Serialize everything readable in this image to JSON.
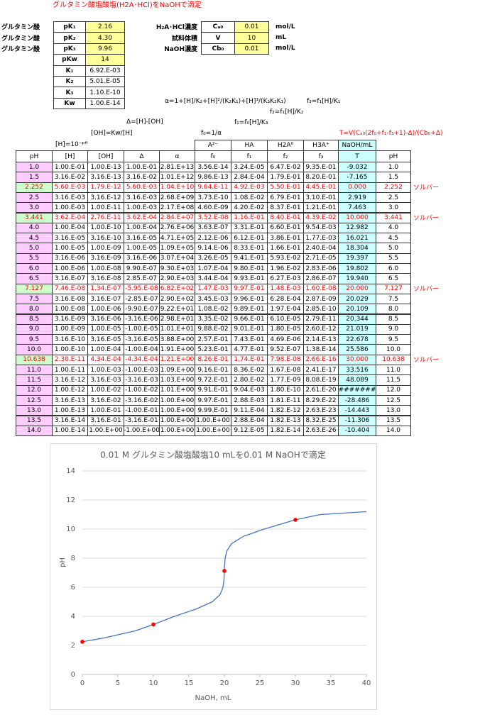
{
  "title": "グルタミン酸塩酸塩(H2A･HCl)をNaOHで滴定",
  "params": [
    {
      "label": "グルタミン酸",
      "symbol": "pK₁",
      "value": "2.16"
    },
    {
      "label": "グルタミン酸",
      "symbol": "pK₂",
      "value": "4.30"
    },
    {
      "label": "グルタミン酸",
      "symbol": "pK₃",
      "value": "9.96"
    },
    {
      "symbol": "pKw",
      "value": "14"
    },
    {
      "symbol": "K₁",
      "value": "6.92.E-03"
    },
    {
      "symbol": "K₂",
      "value": "5.01.E-05"
    },
    {
      "symbol": "K₃",
      "value": "1.10.E-10"
    },
    {
      "symbol": "Kw",
      "value": "1.00.E-14"
    }
  ],
  "conditions": [
    {
      "label": "H₂A･HCl濃度",
      "symbol": "Cₐ₀",
      "value": "0.01",
      "unit": "mol/L"
    },
    {
      "label": "試料体積",
      "symbol": "V",
      "value": "10",
      "unit": "mL"
    },
    {
      "label": "NaOH濃度",
      "symbol": "Cb₀",
      "value": "0.01",
      "unit": "mol/L"
    }
  ],
  "formulas": {
    "alpha": "α=1+[H]/K₂+[H]²/(K₂K₁)+[H]³/(K₃K₂K₁)",
    "f3": "f₃=f₁[H]/K₁",
    "f2": "f₂=f₁[H]/K₂",
    "delta": "Δ=[H]-[OH]",
    "f1": "f₁=f₀[H]/K₃",
    "oh": "[OH]=Kw/[H]",
    "f0": "f₀=1/α",
    "t": "T=V(Cₐ₀(2f₀+f₁-f₃+1)-Δ)/(Cb₀+Δ)",
    "h": "[H]=10⁻ᵖᴴ"
  },
  "table": {
    "header_top": [
      "A²⁻",
      "HA",
      "H2A⁰",
      "H3A⁺",
      "NaOH/mL"
    ],
    "header": [
      "pH",
      "[H]",
      "[OH]",
      "Δ",
      "α",
      "f₀",
      "f₁",
      "f₂",
      "f₃",
      "T",
      "pH"
    ],
    "rows": [
      {
        "cells": [
          "1.0",
          "1.00.E-01",
          "1.00.E-13",
          "1.00.E-01",
          "2.81.E+13",
          "3.56.E-14",
          "3.24.E-05",
          "6.47.E-02",
          "9.35.E-01",
          "-9.032",
          "1.0"
        ]
      },
      {
        "cells": [
          "1.5",
          "3.16.E-02",
          "3.16.E-13",
          "3.16.E-02",
          "1.01.E+12",
          "9.86.E-13",
          "2.84.E-04",
          "1.79.E-01",
          "8.20.E-01",
          "-7.165",
          "1.5"
        ]
      },
      {
        "cells": [
          "2.252",
          "5.60.E-03",
          "1.79.E-12",
          "5.60.E-03",
          "1.04.E+10",
          "9.64.E-11",
          "4.92.E-03",
          "5.50.E-01",
          "4.45.E-01",
          "0.000",
          "2.252"
        ],
        "note": "ソルバー"
      },
      {
        "cells": [
          "2.5",
          "3.16.E-03",
          "3.16.E-12",
          "3.16.E-03",
          "2.68.E+09",
          "3.73.E-10",
          "1.08.E-02",
          "6.79.E-01",
          "3.10.E-01",
          "2.919",
          "2.5"
        ]
      },
      {
        "cells": [
          "3.0",
          "1.00.E-03",
          "1.00.E-11",
          "1.00.E-03",
          "2.17.E+08",
          "4.60.E-09",
          "4.20.E-02",
          "8.37.E-01",
          "1.21.E-01",
          "7.463",
          "3.0"
        ]
      },
      {
        "cells": [
          "3.441",
          "3.62.E-04",
          "2.76.E-11",
          "3.62.E-04",
          "2.84.E+07",
          "3.52.E-08",
          "1.16.E-01",
          "8.40.E-01",
          "4.39.E-02",
          "10.000",
          "3.441"
        ],
        "note": "ソルバー"
      },
      {
        "cells": [
          "4.0",
          "1.00.E-04",
          "1.00.E-10",
          "1.00.E-04",
          "2.76.E+06",
          "3.63.E-07",
          "3.31.E-01",
          "6.60.E-01",
          "9.54.E-03",
          "12.982",
          "4.0"
        ]
      },
      {
        "cells": [
          "4.5",
          "3.16.E-05",
          "3.16.E-10",
          "3.16.E-05",
          "4.71.E+05",
          "2.12.E-06",
          "6.12.E-01",
          "3.86.E-01",
          "1.77.E-03",
          "16.021",
          "4.5"
        ]
      },
      {
        "cells": [
          "5.0",
          "1.00.E-05",
          "1.00.E-09",
          "1.00.E-05",
          "1.09.E+05",
          "9.14.E-06",
          "8.33.E-01",
          "1.66.E-01",
          "2.40.E-04",
          "18.304",
          "5.0"
        ]
      },
      {
        "cells": [
          "5.5",
          "3.16.E-06",
          "3.16.E-09",
          "3.16.E-06",
          "3.07.E+04",
          "3.26.E-05",
          "9.41.E-01",
          "5.93.E-02",
          "2.71.E-05",
          "19.397",
          "5.5"
        ]
      },
      {
        "cells": [
          "6.0",
          "1.00.E-06",
          "1.00.E-08",
          "9.90.E-07",
          "9.30.E+03",
          "1.07.E-04",
          "9.80.E-01",
          "1.96.E-02",
          "2.83.E-06",
          "19.802",
          "6.0"
        ]
      },
      {
        "cells": [
          "6.5",
          "3.16.E-07",
          "3.16.E-08",
          "2.85.E-07",
          "2.90.E+03",
          "3.44.E-04",
          "9.93.E-01",
          "6.27.E-03",
          "2.86.E-07",
          "19.940",
          "6.5"
        ]
      },
      {
        "cells": [
          "7.127",
          "7.46.E-08",
          "1.34.E-07",
          "-5.95.E-08",
          "6.82.E+02",
          "1.47.E-03",
          "9.97.E-01",
          "1.48.E-03",
          "1.60.E-08",
          "20.000",
          "7.127"
        ],
        "note": "ソルバー"
      },
      {
        "cells": [
          "7.5",
          "3.16.E-08",
          "3.16.E-07",
          "-2.85.E-07",
          "2.90.E+02",
          "3.45.E-03",
          "9.96.E-01",
          "6.28.E-04",
          "2.87.E-09",
          "20.029",
          "7.5"
        ]
      },
      {
        "cells": [
          "8.0",
          "1.00.E-08",
          "1.00.E-06",
          "-9.90.E-07",
          "9.22.E+01",
          "1.08.E-02",
          "9.89.E-01",
          "1.97.E-04",
          "2.85.E-10",
          "20.109",
          "8.0"
        ]
      },
      {
        "cells": [
          "8.5",
          "3.16.E-09",
          "3.16.E-06",
          "-3.16.E-06",
          "2.98.E+01",
          "3.35.E-02",
          "9.66.E-01",
          "6.10.E-05",
          "2.79.E-11",
          "20.344",
          "8.5"
        ]
      },
      {
        "cells": [
          "9.0",
          "1.00.E-09",
          "1.00.E-05",
          "-1.00.E-05",
          "1.01.E+01",
          "9.88.E-02",
          "9.01.E-01",
          "1.80.E-05",
          "2.60.E-12",
          "21.019",
          "9.0"
        ]
      },
      {
        "cells": [
          "9.5",
          "3.16.E-10",
          "3.16.E-05",
          "-3.16.E-05",
          "3.88.E+00",
          "2.57.E-01",
          "7.43.E-01",
          "4.69.E-06",
          "2.14.E-13",
          "22.678",
          "9.5"
        ]
      },
      {
        "cells": [
          "10.0",
          "1.00.E-10",
          "1.00.E-04",
          "-1.00.E-04",
          "1.91.E+00",
          "5.23.E-01",
          "4.77.E-01",
          "9.52.E-07",
          "1.38.E-14",
          "25.586",
          "10.0"
        ]
      },
      {
        "cells": [
          "10.638",
          "2.30.E-11",
          "4.34.E-04",
          "-4.34.E-04",
          "1.21.E+00",
          "8.26.E-01",
          "1.74.E-01",
          "7.98.E-08",
          "2.66.E-16",
          "30.000",
          "10.638"
        ],
        "note": "ソルバー"
      },
      {
        "cells": [
          "11.0",
          "1.00.E-11",
          "1.00.E-03",
          "-1.00.E-03",
          "1.09.E+00",
          "9.16.E-01",
          "8.36.E-02",
          "1.67.E-08",
          "2.41.E-17",
          "33.516",
          "11.0"
        ]
      },
      {
        "cells": [
          "11.5",
          "3.16.E-12",
          "3.16.E-03",
          "-3.16.E-03",
          "1.03.E+00",
          "9.72.E-01",
          "2.80.E-02",
          "1.77.E-09",
          "8.08.E-19",
          "48.089",
          "11.5"
        ]
      },
      {
        "cells": [
          "12.0",
          "1.00.E-12",
          "1.00.E-02",
          "-1.00.E-02",
          "1.01.E+00",
          "9.91.E-01",
          "9.04.E-03",
          "1.80.E-10",
          "2.61.E-20",
          "#########",
          "12.0"
        ]
      },
      {
        "cells": [
          "12.5",
          "3.16.E-13",
          "3.16.E-02",
          "-3.16.E-02",
          "1.00.E+00",
          "9.97.E-01",
          "2.88.E-03",
          "1.81.E-11",
          "8.29.E-22",
          "-28.486",
          "12.5"
        ]
      },
      {
        "cells": [
          "13.0",
          "1.00.E-13",
          "1.00.E-01",
          "-1.00.E-01",
          "1.00.E+00",
          "9.99.E-01",
          "9.11.E-04",
          "1.82.E-12",
          "2.63.E-23",
          "-14.443",
          "13.0"
        ]
      },
      {
        "cells": [
          "13.5",
          "3.16.E-14",
          "3.16.E-01",
          "-3.16.E-01",
          "1.00.E+00",
          "1.00.E+00",
          "2.88.E-04",
          "1.82.E-13",
          "8.32.E-25",
          "-11.306",
          "13.5"
        ]
      },
      {
        "cells": [
          "14.0",
          "1.00.E-14",
          "1.00.E+00",
          "-1.00.E+00",
          "1.00.E+00",
          "1.00.E+00",
          "9.12.E-05",
          "1.82.E-14",
          "2.63.E-26",
          "-10.404",
          "14.0"
        ]
      }
    ]
  },
  "chart_data": {
    "type": "line",
    "title": "0.01 M グルタミン酸塩酸塩10 mLを0.01 M NaOHで滴定",
    "x_label": "NaOH, mL",
    "y_label": "pH",
    "xlim": [
      0,
      40
    ],
    "ylim": [
      0,
      14
    ],
    "xticks": [
      0,
      5,
      10,
      15,
      20,
      25,
      30,
      35,
      40
    ],
    "yticks": [
      0,
      2,
      4,
      6,
      8,
      10,
      12,
      14
    ],
    "grid": true,
    "series": [
      {
        "color": "#4472c4",
        "mode": "line",
        "x": [
          0,
          2.919,
          7.463,
          10,
          12.982,
          16.021,
          18.304,
          19.397,
          19.802,
          19.94,
          20,
          20.029,
          20.109,
          20.344,
          21.019,
          22.678,
          25.586,
          30,
          33.516,
          40
        ],
        "values": [
          2.252,
          2.5,
          3.0,
          3.441,
          4.0,
          4.5,
          5.0,
          5.5,
          6.0,
          6.5,
          7.127,
          7.5,
          8.0,
          8.5,
          9.0,
          9.5,
          10.0,
          10.638,
          11.0,
          11.2
        ]
      },
      {
        "color": "#ff0000",
        "mode": "markers",
        "x": [
          0,
          10,
          20,
          30
        ],
        "values": [
          2.252,
          3.441,
          7.127,
          10.638
        ]
      }
    ]
  }
}
